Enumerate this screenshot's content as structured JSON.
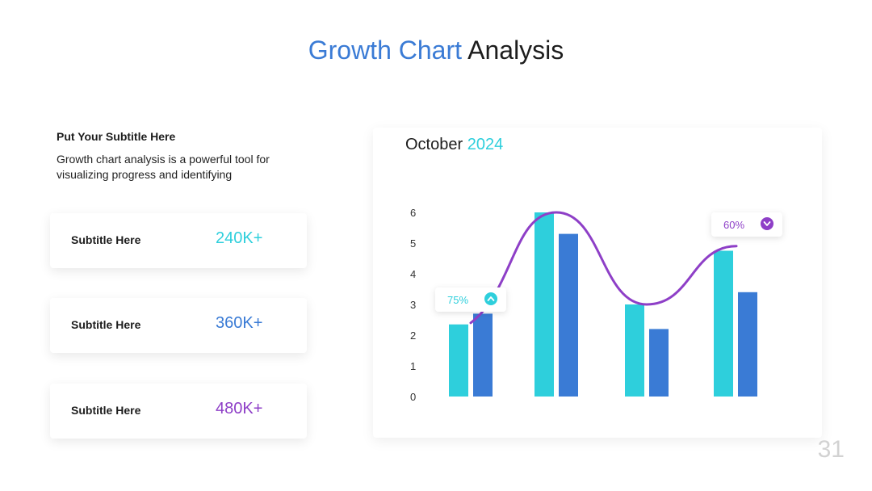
{
  "header": {
    "title_highlight": "Growth Chart",
    "title_rest": "Analysis"
  },
  "intro": {
    "subtitle": "Put Your Subtitle Here",
    "text": "Growth chart analysis is a powerful tool for visualizing progress and identifying"
  },
  "cards": [
    {
      "label": "Subtitle Here",
      "value": "240K+",
      "color": "#2ecfdc"
    },
    {
      "label": "Subtitle Here",
      "value": "360K+",
      "color": "#3a7bd5"
    },
    {
      "label": "Subtitle Here",
      "value": "480K+",
      "color": "#8e3fc7"
    }
  ],
  "colors": {
    "cyan": "#2ecfdc",
    "blue": "#3a7bd5",
    "purple": "#8e3fc7"
  },
  "chart_data": {
    "type": "bar",
    "title_month": "October",
    "title_year": "2024",
    "categories": [
      "",
      "",
      "",
      ""
    ],
    "series": [
      {
        "values": [
          2.35,
          6.0,
          3.0,
          4.75
        ],
        "color": "#2ecfdc"
      },
      {
        "values": [
          2.7,
          5.3,
          2.2,
          3.4
        ],
        "color": "#3a7bd5"
      }
    ],
    "trend_line": {
      "color": "#8e3fc7",
      "points": [
        [
          0,
          2.4
        ],
        [
          1,
          6.0
        ],
        [
          2,
          3.0
        ],
        [
          3,
          4.9
        ]
      ]
    },
    "yticks": [
      "0",
      "1",
      "2",
      "3",
      "4",
      "5",
      "6"
    ],
    "ylim": [
      0,
      6
    ],
    "callouts": [
      {
        "label": "75%",
        "icon": "chevron-up-icon",
        "color": "#2ecfdc"
      },
      {
        "label": "60%",
        "icon": "chevron-down-icon",
        "color": "#8e3fc7"
      }
    ],
    "grid": false
  },
  "page_number": "31"
}
